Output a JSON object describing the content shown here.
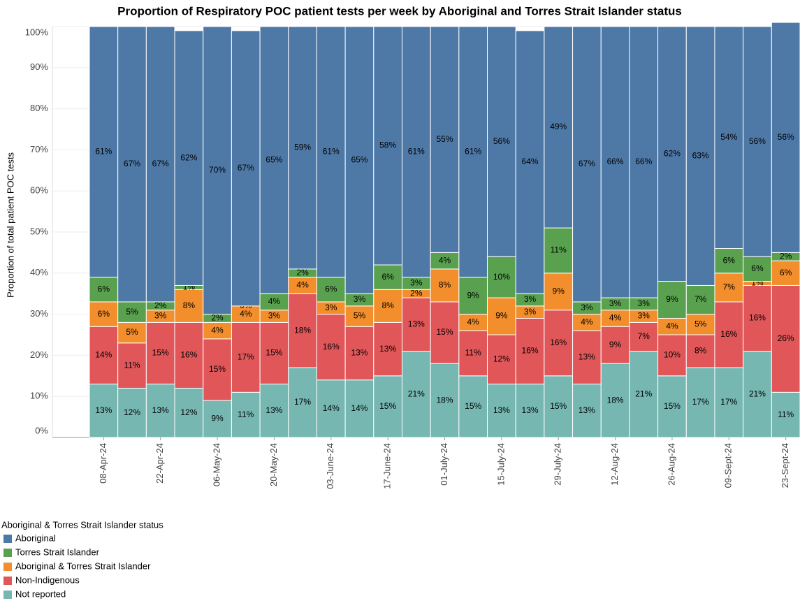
{
  "chart_data": {
    "type": "stacked-bar",
    "title": "Proportion of Respiratory POC patient tests per week by Aboriginal and Torres Strait Islander status",
    "y_label": "Proportion of total patient POC tests",
    "legend_title": "Aboriginal & Torres Strait Islander status",
    "categories": [
      "08-Apr-24",
      null,
      "22-Apr-24",
      null,
      "06-May-24",
      null,
      "20-May-24",
      null,
      "03-June-24",
      null,
      "17-June-24",
      null,
      "01-July-24",
      null,
      "15-July-24",
      null,
      "29-July-24",
      null,
      "12-Aug-24",
      null,
      "26-Aug-24",
      null,
      "09-Sept-24",
      null,
      "23-Sept-24"
    ],
    "ylim": [
      0,
      100
    ],
    "yticks": [
      {
        "value": 0,
        "label": "0%"
      },
      {
        "value": 10,
        "label": "10%"
      },
      {
        "value": 20,
        "label": "20%"
      },
      {
        "value": 30,
        "label": "30%"
      },
      {
        "value": 40,
        "label": "40%"
      },
      {
        "value": 50,
        "label": "50%"
      },
      {
        "value": 60,
        "label": "60%"
      },
      {
        "value": 70,
        "label": "70%"
      },
      {
        "value": 80,
        "label": "80%"
      },
      {
        "value": 90,
        "label": "90%"
      },
      {
        "value": 100,
        "label": "100%"
      }
    ],
    "grid": true,
    "series": [
      {
        "name": "Not reported",
        "color": "#76b7b2",
        "values": [
          13,
          12,
          13,
          12,
          9,
          11,
          13,
          17,
          14,
          14,
          15,
          21,
          18,
          15,
          13,
          13,
          15,
          13,
          18,
          21,
          15,
          17,
          17,
          21,
          11
        ],
        "value_labels": [
          "13%",
          "12%",
          "13%",
          "12%",
          "9%",
          "11%",
          "13%",
          "17%",
          "14%",
          "14%",
          "15%",
          "21%",
          "18%",
          "15%",
          "13%",
          "13%",
          "15%",
          "13%",
          "18%",
          "21%",
          "15%",
          "17%",
          "17%",
          "21%",
          "11%"
        ]
      },
      {
        "name": "Non-Indigenous",
        "color": "#e15759",
        "values": [
          14,
          11,
          15,
          16,
          15,
          17,
          15,
          18,
          16,
          13,
          13,
          13,
          15,
          11,
          12,
          16,
          16,
          13,
          9,
          7,
          10,
          8,
          16,
          16,
          26
        ],
        "value_labels": [
          "14%",
          "11%",
          "15%",
          "16%",
          "15%",
          "17%",
          "15%",
          "18%",
          "16%",
          "13%",
          "13%",
          "13%",
          "15%",
          "11%",
          "12%",
          "16%",
          "16%",
          "13%",
          "9%",
          "7%",
          "10%",
          "8%",
          "16%",
          "16%",
          "26%"
        ]
      },
      {
        "name": "Aboriginal & Torres Strait Islander",
        "color": "#f28e2b",
        "values": [
          6,
          5,
          3,
          8,
          4,
          4,
          3,
          4,
          3,
          5,
          8,
          2,
          8,
          4,
          9,
          3,
          9,
          4,
          4,
          3,
          4,
          5,
          7,
          1,
          6
        ],
        "value_labels": [
          "6%",
          "5%",
          "3%",
          "8%",
          "4%",
          "4%",
          "3%",
          "4%",
          "3%",
          "5%",
          "8%",
          "2%",
          "8%",
          "4%",
          "9%",
          "3%",
          "9%",
          "4%",
          "4%",
          "3%",
          "4%",
          "5%",
          "7%",
          "1%",
          "6%"
        ]
      },
      {
        "name": "Torres Strait Islander",
        "color": "#59a14f",
        "values": [
          6,
          5,
          2,
          1,
          2,
          0,
          4,
          2,
          6,
          3,
          6,
          3,
          4,
          9,
          10,
          3,
          11,
          3,
          3,
          3,
          9,
          7,
          6,
          6,
          2
        ],
        "value_labels": [
          "6%",
          "5%",
          "2%",
          "1%",
          "2%",
          "0%",
          "4%",
          "2%",
          "6%",
          "3%",
          "6%",
          "3%",
          "4%",
          "9%",
          "10%",
          "3%",
          "11%",
          "3%",
          "3%",
          "3%",
          "9%",
          "7%",
          "6%",
          "6%",
          "2%"
        ]
      },
      {
        "name": "Aboriginal",
        "color": "#4e79a7",
        "values": [
          61,
          67,
          67,
          62,
          70,
          67,
          65,
          59,
          61,
          65,
          58,
          61,
          55,
          61,
          56,
          64,
          49,
          67,
          66,
          66,
          62,
          63,
          54,
          56,
          56
        ],
        "value_labels": [
          "61%",
          "67%",
          "67%",
          "62%",
          "70%",
          "67%",
          "65%",
          "59%",
          "61%",
          "65%",
          "58%",
          "61%",
          "55%",
          "61%",
          "56%",
          "64%",
          "49%",
          "67%",
          "66%",
          "66%",
          "62%",
          "63%",
          "54%",
          "56%",
          "56%"
        ]
      }
    ]
  }
}
